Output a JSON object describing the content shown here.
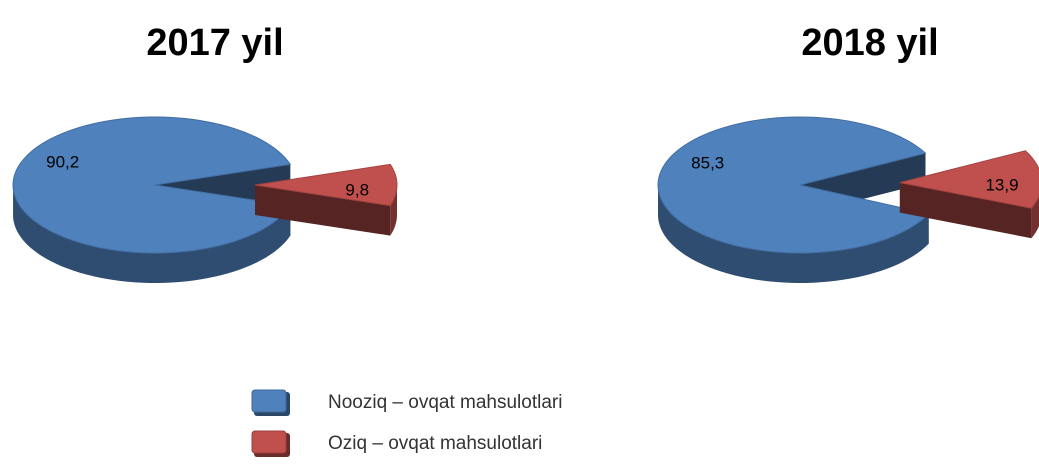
{
  "chart_data": [
    {
      "type": "pie",
      "title": "2017 yil",
      "values": [
        90.2,
        9.8
      ],
      "value_labels": [
        "90,2",
        "9,8"
      ],
      "colors": [
        "#4f81bd",
        "#c0504d"
      ]
    },
    {
      "type": "pie",
      "title": "2018 yil",
      "values": [
        85.3,
        13.9
      ],
      "value_labels": [
        "85,3",
        "13,9"
      ],
      "colors": [
        "#4f81bd",
        "#c0504d"
      ]
    }
  ],
  "legend": {
    "items": [
      {
        "label": "Nooziq – ovqat mahsulotlari",
        "color": "#4f81bd"
      },
      {
        "label": "Oziq – ovqat mahsulotlari",
        "color": "#c0504d"
      }
    ]
  }
}
